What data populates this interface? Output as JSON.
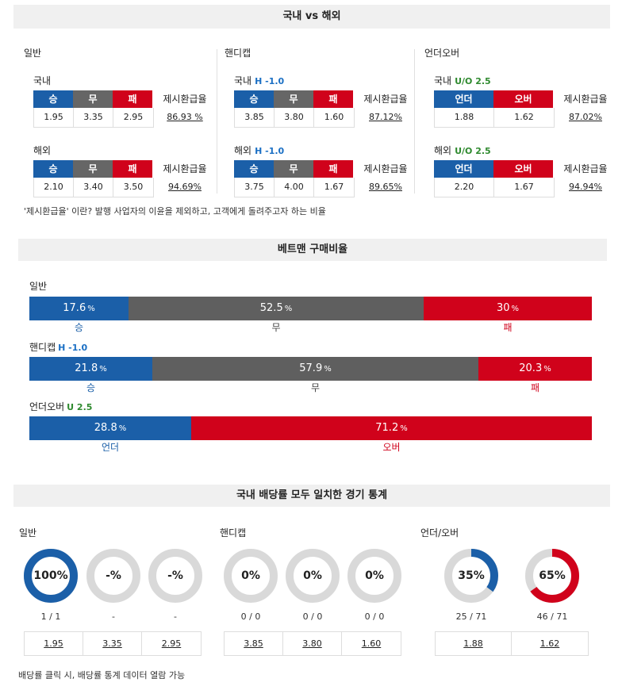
{
  "odds": {
    "title": "국내 vs 해외",
    "columns": [
      {
        "title": "일반",
        "blocks": [
          {
            "label": "국내",
            "tag": "",
            "heads": [
              "승",
              "무",
              "패"
            ],
            "values": [
              "1.95",
              "3.35",
              "2.95"
            ],
            "payout_label": "제시환급율",
            "payout": "86.93 %"
          },
          {
            "label": "해외",
            "tag": "",
            "heads": [
              "승",
              "무",
              "패"
            ],
            "values": [
              "2.10",
              "3.40",
              "3.50"
            ],
            "payout_label": "제시환급율",
            "payout": "94.69%"
          }
        ]
      },
      {
        "title": "핸디캡",
        "blocks": [
          {
            "label": "국내",
            "tag": "H -1.0",
            "heads": [
              "승",
              "무",
              "패"
            ],
            "values": [
              "3.85",
              "3.80",
              "1.60"
            ],
            "payout_label": "제시환급율",
            "payout": "87.12%"
          },
          {
            "label": "해외",
            "tag": "H -1.0",
            "heads": [
              "승",
              "무",
              "패"
            ],
            "values": [
              "3.75",
              "4.00",
              "1.67"
            ],
            "payout_label": "제시환급율",
            "payout": "89.65%"
          }
        ]
      },
      {
        "title": "언더오버",
        "blocks": [
          {
            "label": "국내",
            "tag": "U/O 2.5",
            "heads": [
              "언더",
              "오버"
            ],
            "values": [
              "1.88",
              "1.62"
            ],
            "payout_label": "제시환급율",
            "payout": "87.02%"
          },
          {
            "label": "해외",
            "tag": "U/O 2.5",
            "heads": [
              "언더",
              "오버"
            ],
            "values": [
              "2.20",
              "1.67"
            ],
            "payout_label": "제시환급율",
            "payout": "94.94%"
          }
        ]
      }
    ],
    "note": "'제시환급율' 이란? 발행 사업자의 이윤을 제외하고, 고객에게 돌려주고자 하는 비율"
  },
  "ratio": {
    "title": "베트맨 구매비율",
    "rows": [
      {
        "label": "일반",
        "tag": "",
        "segments": [
          {
            "value": 17.6,
            "text": "17.6",
            "unit": "%",
            "sub": "승",
            "color": "#1b5fa8"
          },
          {
            "value": 52.5,
            "text": "52.5",
            "unit": "%",
            "sub": "무",
            "color": "#5f5f5f"
          },
          {
            "value": 30,
            "text": "30",
            "unit": "%",
            "sub": "패",
            "color": "#d0021b"
          }
        ]
      },
      {
        "label": "핸디캡",
        "tag": "H -1.0",
        "segments": [
          {
            "value": 21.8,
            "text": "21.8",
            "unit": "%",
            "sub": "승",
            "color": "#1b5fa8"
          },
          {
            "value": 57.9,
            "text": "57.9",
            "unit": "%",
            "sub": "무",
            "color": "#5f5f5f"
          },
          {
            "value": 20.3,
            "text": "20.3",
            "unit": "%",
            "sub": "패",
            "color": "#d0021b"
          }
        ]
      },
      {
        "label": "언더오버",
        "tag": "U 2.5",
        "segments": [
          {
            "value": 28.8,
            "text": "28.8",
            "unit": "%",
            "sub": "언더",
            "color": "#1b5fa8"
          },
          {
            "value": 71.2,
            "text": "71.2",
            "unit": "%",
            "sub": "오버",
            "color": "#d0021b"
          }
        ]
      }
    ]
  },
  "stats": {
    "title": "국내 배당률 모두 일치한 경기 통계",
    "groups": [
      {
        "title": "일반",
        "items": [
          {
            "pct_text": "100%",
            "pct": 100,
            "sub": "1 / 1",
            "odds": "1.95",
            "color": "#1b5fa8"
          },
          {
            "pct_text": "-%",
            "pct": 0,
            "sub": "-",
            "odds": "3.35",
            "color": "#5f5f5f"
          },
          {
            "pct_text": "-%",
            "pct": 0,
            "sub": "-",
            "odds": "2.95",
            "color": "#d0021b"
          }
        ]
      },
      {
        "title": "핸디캡",
        "items": [
          {
            "pct_text": "0%",
            "pct": 0,
            "sub": "0 / 0",
            "odds": "3.85",
            "color": "#1b5fa8"
          },
          {
            "pct_text": "0%",
            "pct": 0,
            "sub": "0 / 0",
            "odds": "3.80",
            "color": "#5f5f5f"
          },
          {
            "pct_text": "0%",
            "pct": 0,
            "sub": "0 / 0",
            "odds": "1.60",
            "color": "#d0021b"
          }
        ]
      },
      {
        "title": "언더/오버",
        "items": [
          {
            "pct_text": "35%",
            "pct": 35,
            "sub": "25 / 71",
            "odds": "1.88",
            "color": "#1b5fa8"
          },
          {
            "pct_text": "65%",
            "pct": 65,
            "sub": "46 / 71",
            "odds": "1.62",
            "color": "#d0021b"
          }
        ]
      }
    ],
    "note": "배당률 클릭 시, 배당률 통계 데이터 열람 가능"
  }
}
